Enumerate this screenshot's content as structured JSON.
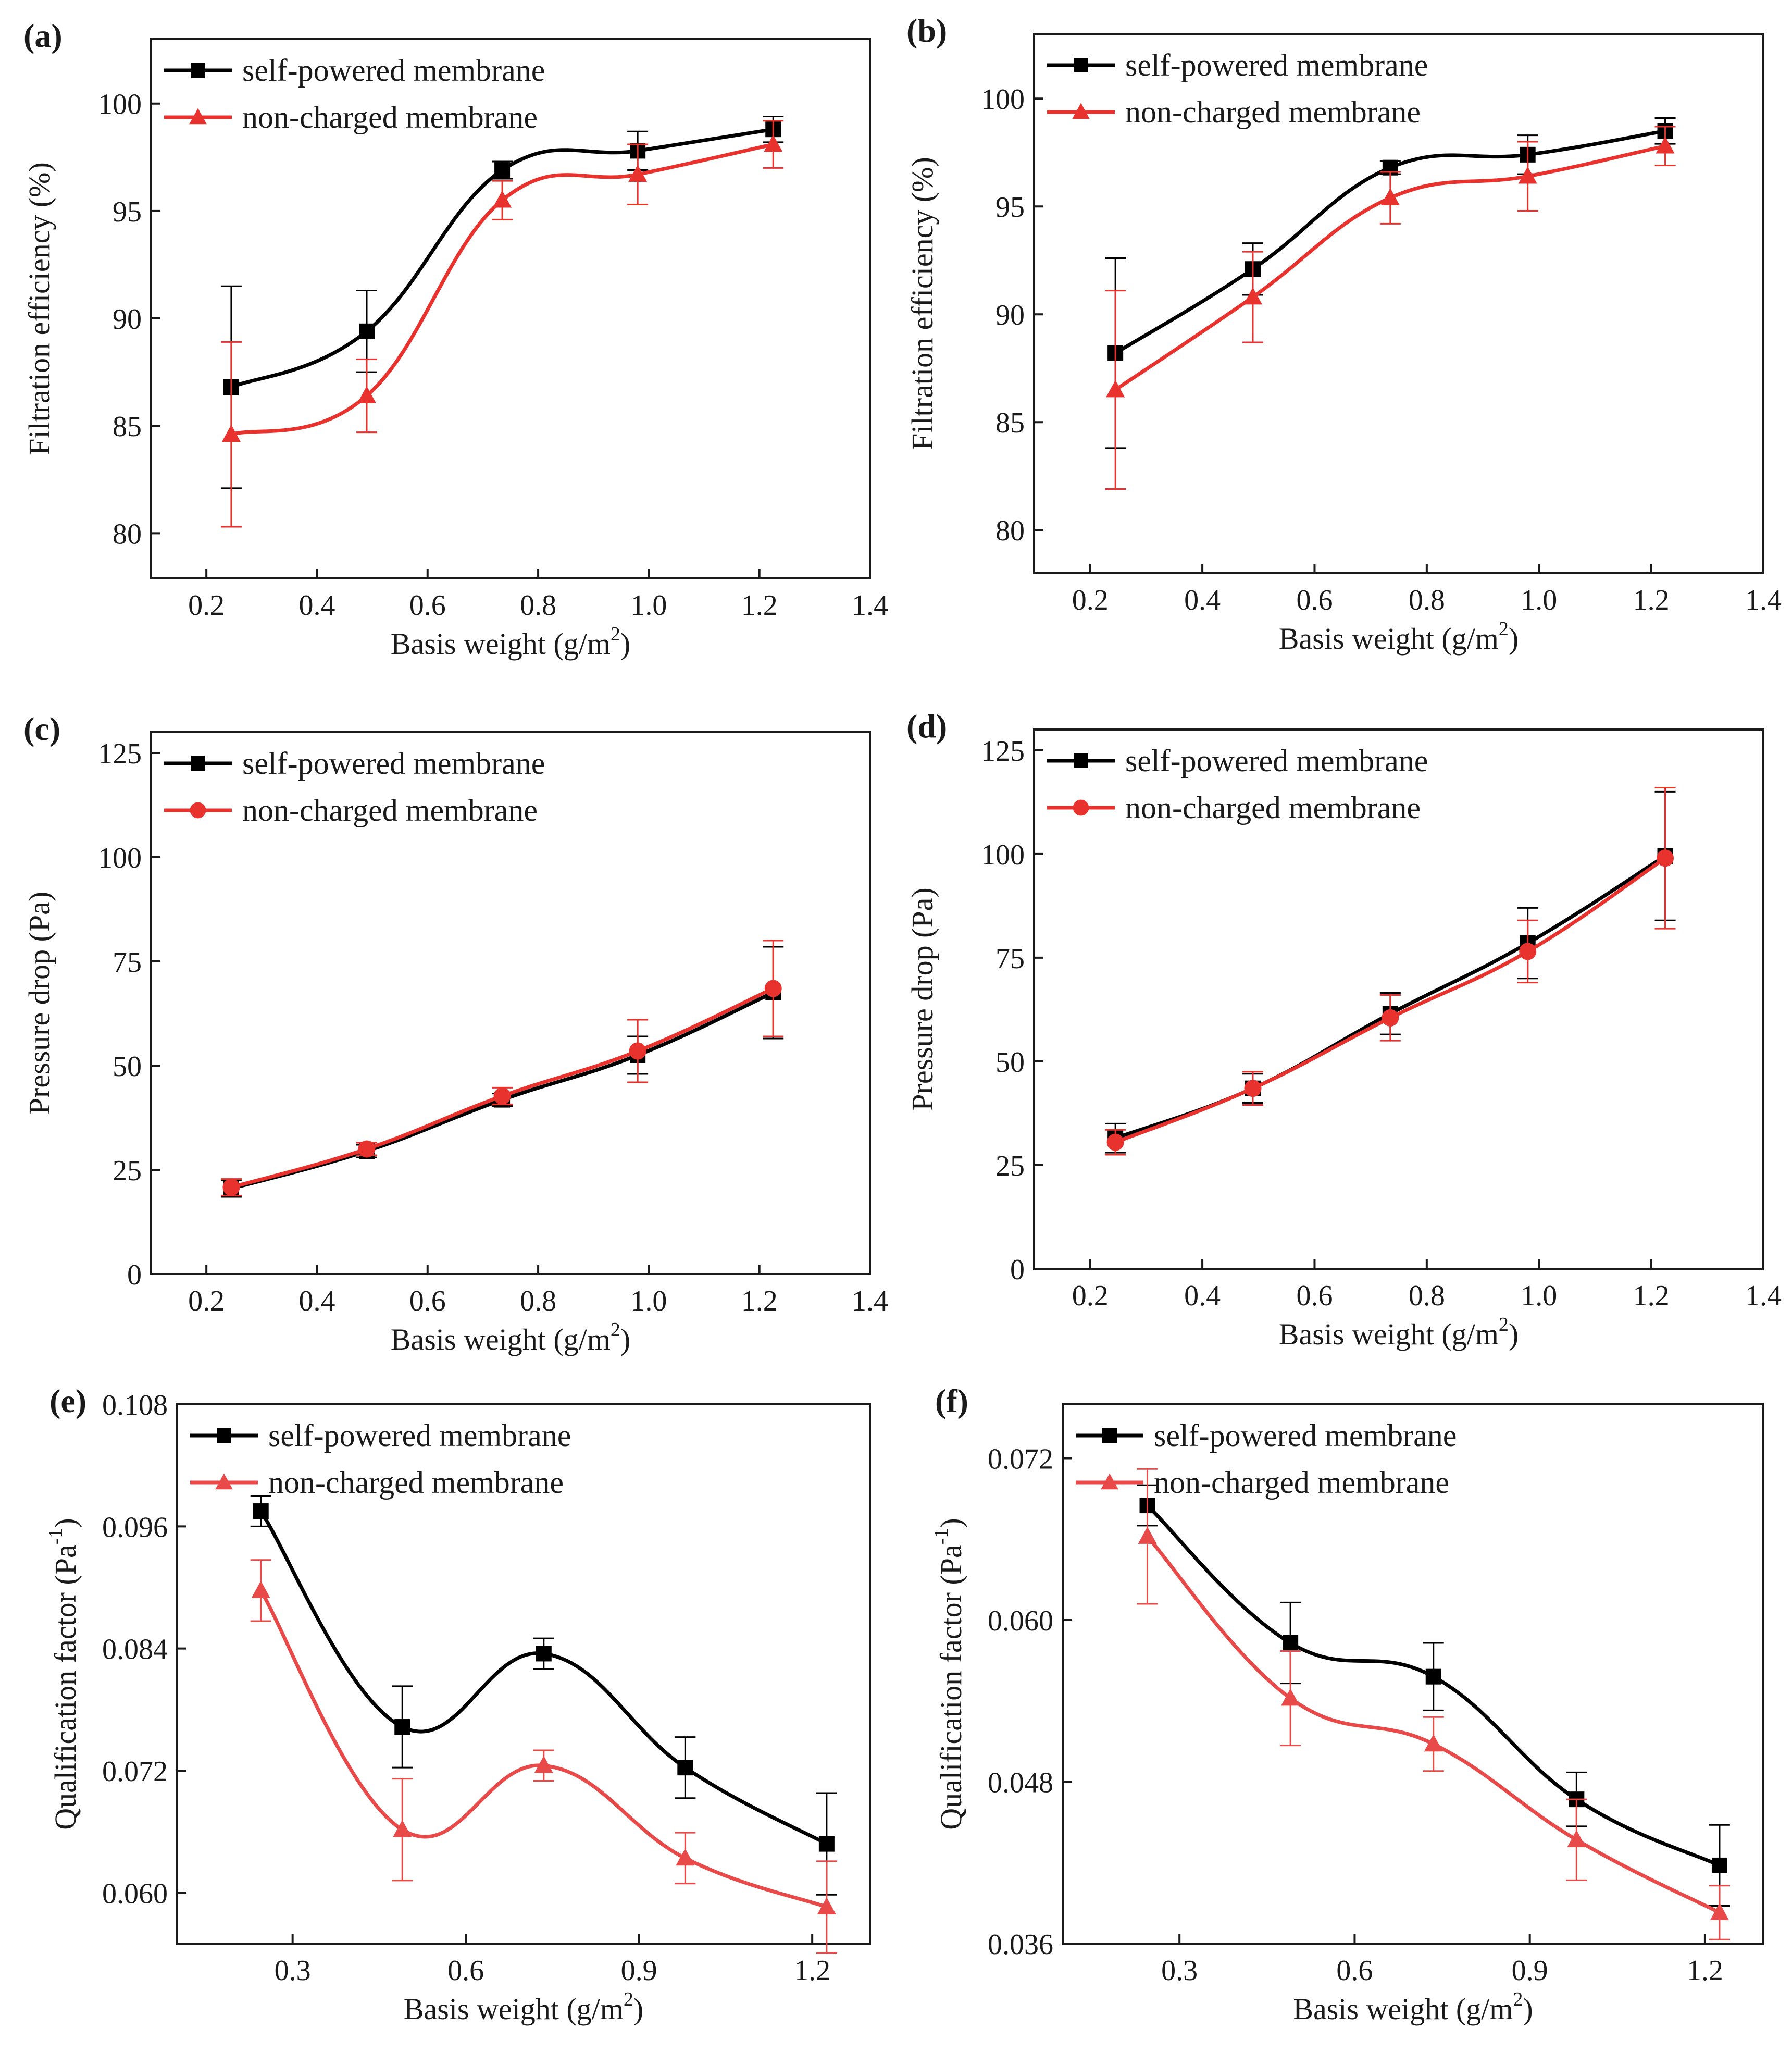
{
  "figure": {
    "colors": {
      "self_powered": "#000000",
      "non_charged": "#e8322e",
      "non_charged_qf": "#e84a4a",
      "axis": "#1a1a1a"
    }
  },
  "chart_data": [
    {
      "panel": "(a)",
      "type": "line",
      "xlabel": "Basis weight (g/m",
      "xlabel_sup": "2",
      "xlabel_tail": ")",
      "ylabel": "Filtration efficiency (%)",
      "ylabel_sup": "",
      "xlim": [
        0.1,
        1.4
      ],
      "xticks": [
        0.2,
        0.4,
        0.6,
        0.8,
        1.0,
        1.2,
        1.4
      ],
      "xtick_labels": [
        "0.2",
        "0.4",
        "0.6",
        "0.8",
        "1.0",
        "1.2",
        "1.4"
      ],
      "ylim": [
        77.9,
        103
      ],
      "yticks": [
        80,
        85,
        90,
        95,
        100
      ],
      "ytick_labels": [
        "80",
        "85",
        "90",
        "95",
        "100"
      ],
      "legend": "top-left",
      "series": [
        {
          "name": "self-powered membrane",
          "marker": "square",
          "color": "#000000",
          "x": [
            0.245,
            0.49,
            0.735,
            0.98,
            1.225
          ],
          "y": [
            86.8,
            89.4,
            96.9,
            97.8,
            98.8
          ],
          "err": [
            4.7,
            1.9,
            0.4,
            0.9,
            0.6
          ]
        },
        {
          "name": "non-charged membrane",
          "marker": "triangle",
          "color": "#e8322e",
          "x": [
            0.245,
            0.49,
            0.735,
            0.98,
            1.225
          ],
          "y": [
            84.6,
            86.4,
            95.5,
            96.7,
            98.1
          ],
          "err": [
            4.3,
            1.7,
            0.9,
            1.4,
            1.1
          ]
        }
      ]
    },
    {
      "panel": "(b)",
      "type": "line",
      "xlabel": "Basis weight (g/m",
      "xlabel_sup": "2",
      "xlabel_tail": ")",
      "ylabel": "Filtration efficiency (%)",
      "ylabel_sup": "",
      "xlim": [
        0.1,
        1.4
      ],
      "xticks": [
        0.2,
        0.4,
        0.6,
        0.8,
        1.0,
        1.2,
        1.4
      ],
      "xtick_labels": [
        "0.2",
        "0.4",
        "0.6",
        "0.8",
        "1.0",
        "1.2",
        "1.4"
      ],
      "ylim": [
        78,
        103
      ],
      "yticks": [
        80,
        85,
        90,
        95,
        100
      ],
      "ytick_labels": [
        "80",
        "85",
        "90",
        "95",
        "100"
      ],
      "legend": "top-left",
      "series": [
        {
          "name": "self-powered membrane",
          "marker": "square",
          "color": "#000000",
          "x": [
            0.245,
            0.49,
            0.735,
            0.98,
            1.225
          ],
          "y": [
            88.2,
            92.1,
            96.8,
            97.4,
            98.5
          ],
          "err": [
            4.4,
            1.2,
            0.3,
            0.9,
            0.6
          ]
        },
        {
          "name": "non-charged membrane",
          "marker": "triangle",
          "color": "#e8322e",
          "x": [
            0.245,
            0.49,
            0.735,
            0.98,
            1.225
          ],
          "y": [
            86.5,
            90.8,
            95.4,
            96.4,
            97.8
          ],
          "err": [
            4.6,
            2.1,
            1.2,
            1.6,
            0.9
          ]
        }
      ]
    },
    {
      "panel": "(c)",
      "type": "line",
      "xlabel": "Basis weight (g/m",
      "xlabel_sup": "2",
      "xlabel_tail": ")",
      "ylabel": "Pressure drop (Pa)",
      "ylabel_sup": "",
      "xlim": [
        0.1,
        1.4
      ],
      "xticks": [
        0.2,
        0.4,
        0.6,
        0.8,
        1.0,
        1.2,
        1.4
      ],
      "xtick_labels": [
        "0.2",
        "0.4",
        "0.6",
        "0.8",
        "1.0",
        "1.2",
        "1.4"
      ],
      "ylim": [
        0,
        130
      ],
      "yticks": [
        0,
        25,
        50,
        75,
        100,
        125
      ],
      "ytick_labels": [
        "0",
        "25",
        "50",
        "75",
        "100",
        "125"
      ],
      "legend": "top-left",
      "series": [
        {
          "name": "self-powered membrane",
          "marker": "square",
          "color": "#000000",
          "x": [
            0.245,
            0.49,
            0.735,
            0.98,
            1.225
          ],
          "y": [
            20.5,
            29.5,
            41.8,
            52.5,
            67.5
          ],
          "err": [
            2.0,
            1.5,
            1.5,
            4.5,
            11.0
          ]
        },
        {
          "name": "non-charged membrane",
          "marker": "circle",
          "color": "#e8322e",
          "x": [
            0.245,
            0.49,
            0.735,
            0.98,
            1.225
          ],
          "y": [
            20.8,
            30.0,
            42.7,
            53.5,
            68.5
          ],
          "err": [
            2.0,
            1.5,
            2.0,
            7.5,
            11.5
          ]
        }
      ]
    },
    {
      "panel": "(d)",
      "type": "line",
      "xlabel": "Basis weight (g/m",
      "xlabel_sup": "2",
      "xlabel_tail": ")",
      "ylabel": "Pressure drop (Pa)",
      "ylabel_sup": "",
      "xlim": [
        0.1,
        1.4
      ],
      "xticks": [
        0.2,
        0.4,
        0.6,
        0.8,
        1.0,
        1.2,
        1.4
      ],
      "xtick_labels": [
        "0.2",
        "0.4",
        "0.6",
        "0.8",
        "1.0",
        "1.2",
        "1.4"
      ],
      "ylim": [
        0,
        130
      ],
      "yticks": [
        0,
        25,
        50,
        75,
        100,
        125
      ],
      "ytick_labels": [
        "0",
        "25",
        "50",
        "75",
        "100",
        "125"
      ],
      "legend": "top-left",
      "series": [
        {
          "name": "self-powered membrane",
          "marker": "square",
          "color": "#000000",
          "x": [
            0.245,
            0.49,
            0.735,
            0.98,
            1.225
          ],
          "y": [
            31.5,
            43.5,
            61.5,
            78.5,
            99.5
          ],
          "err": [
            3.5,
            3.5,
            5.0,
            8.5,
            15.5
          ]
        },
        {
          "name": "non-charged membrane",
          "marker": "circle",
          "color": "#e8322e",
          "x": [
            0.245,
            0.49,
            0.735,
            0.98,
            1.225
          ],
          "y": [
            30.5,
            43.5,
            60.5,
            76.5,
            99.0
          ],
          "err": [
            3.0,
            4.0,
            5.5,
            7.5,
            17.0
          ]
        }
      ]
    },
    {
      "panel": "(e)",
      "type": "line",
      "xlabel": "Basis weight (g/m",
      "xlabel_sup": "2",
      "xlabel_tail": ")",
      "ylabel": "Qualification factor (Pa",
      "ylabel_sup": "-1",
      "ylabel_tail": ")",
      "xlim": [
        0.1,
        1.3
      ],
      "xticks": [
        0.3,
        0.6,
        0.9,
        1.2
      ],
      "xtick_labels": [
        "0.3",
        "0.6",
        "0.9",
        "1.2"
      ],
      "ylim": [
        0.055,
        0.108
      ],
      "yticks": [
        0.06,
        0.072,
        0.084,
        0.096,
        0.108
      ],
      "ytick_labels": [
        "0.060",
        "0.072",
        "0.084",
        "0.096",
        "0.108"
      ],
      "legend": "top-left",
      "series": [
        {
          "name": "self-powered membrane",
          "marker": "square",
          "color": "#000000",
          "x": [
            0.245,
            0.49,
            0.735,
            0.98,
            1.225
          ],
          "y": [
            0.0975,
            0.0763,
            0.0835,
            0.0723,
            0.0648
          ],
          "err": [
            0.0015,
            0.004,
            0.0015,
            0.003,
            0.005
          ]
        },
        {
          "name": "non-charged membrane",
          "marker": "triangle",
          "color": "#e84a4a",
          "x": [
            0.245,
            0.49,
            0.735,
            0.98,
            1.225
          ],
          "y": [
            0.0897,
            0.0662,
            0.0725,
            0.0634,
            0.0586
          ],
          "err": [
            0.003,
            0.005,
            0.0015,
            0.0025,
            0.0045
          ]
        }
      ]
    },
    {
      "panel": "(f)",
      "type": "line",
      "xlabel": "Basis weight (g/m",
      "xlabel_sup": "2",
      "xlabel_tail": ")",
      "ylabel": "Qualification factor (Pa",
      "ylabel_sup": "-1",
      "ylabel_tail": ")",
      "xlim": [
        0.1,
        1.3
      ],
      "xticks": [
        0.3,
        0.6,
        0.9,
        1.2
      ],
      "xtick_labels": [
        "0.3",
        "0.6",
        "0.9",
        "1.2"
      ],
      "ylim": [
        0.036,
        0.076
      ],
      "yticks": [
        0.036,
        0.048,
        0.06,
        0.072
      ],
      "ytick_labels": [
        "0.036",
        "0.048",
        "0.060",
        "0.072"
      ],
      "legend": "top-left",
      "series": [
        {
          "name": "self-powered membrane",
          "marker": "square",
          "color": "#000000",
          "x": [
            0.245,
            0.49,
            0.735,
            0.98,
            1.225
          ],
          "y": [
            0.0685,
            0.0583,
            0.0558,
            0.0467,
            0.0418
          ],
          "err": [
            0.0015,
            0.003,
            0.0025,
            0.002,
            0.003
          ]
        },
        {
          "name": "non-charged membrane",
          "marker": "triangle",
          "color": "#e84a4a",
          "x": [
            0.245,
            0.49,
            0.735,
            0.98,
            1.225
          ],
          "y": [
            0.0662,
            0.0542,
            0.0508,
            0.0437,
            0.0383
          ],
          "err": [
            0.005,
            0.0035,
            0.002,
            0.003,
            0.002
          ]
        }
      ]
    }
  ]
}
